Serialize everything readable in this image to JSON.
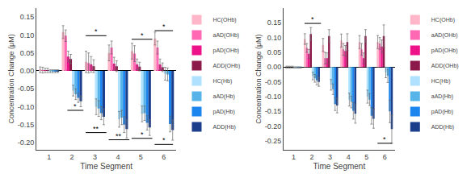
{
  "chart_data": [
    {
      "type": "bar",
      "xlabel": "Time Segment",
      "ylabel": "Concentration Change (μM)",
      "x": [
        1,
        2,
        3,
        4,
        5,
        6
      ],
      "xlim": [
        0.45,
        6.55
      ],
      "xticks": [
        1,
        2,
        3,
        4,
        5,
        6
      ],
      "ylim": [
        -0.22,
        0.175
      ],
      "yticks": [
        {
          "value": -0.2,
          "label": "-0.20"
        },
        -0.15,
        {
          "value": -0.1,
          "label": "-0.10"
        },
        -0.05,
        {
          "value": 0,
          "label": "0.00"
        },
        0.05,
        {
          "value": 0.1,
          "label": "0.10"
        },
        0.15
      ],
      "grid": false,
      "legend": "upper right",
      "series": [
        {
          "name": "HC(OHb)",
          "color": "#FFB6C8",
          "values": [
            0.003,
            0.108,
            0.025,
            0.05,
            0.055,
            0.09
          ],
          "errors": [
            0.008,
            0.018,
            0.03,
            0.022,
            0.022,
            0.018
          ]
        },
        {
          "name": "aAD(OHb)",
          "color": "#FF69B4",
          "values": [
            0.002,
            0.098,
            0.022,
            0.065,
            0.048,
            0.065
          ],
          "errors": [
            0.008,
            0.016,
            0.028,
            0.018,
            0.022,
            0.018
          ]
        },
        {
          "name": "pAD(OHb)",
          "color": "#EE1289",
          "values": [
            0.001,
            0.04,
            0.018,
            0.02,
            0.018,
            0.018
          ],
          "errors": [
            0.006,
            0.015,
            0.022,
            0.018,
            0.015,
            0.015
          ]
        },
        {
          "name": "ADD(OHb)",
          "color": "#8B1A4A",
          "values": [
            0.001,
            0.033,
            0.013,
            0.013,
            0.012,
            0.01
          ],
          "errors": [
            0.006,
            0.013,
            0.018,
            0.015,
            0.012,
            0.012
          ]
        },
        {
          "name": "HC(Hb)",
          "color": "#B0E2FF",
          "values": [
            -0.001,
            -0.055,
            -0.1,
            -0.135,
            -0.12,
            -0.008
          ],
          "errors": [
            0.004,
            0.015,
            0.022,
            0.022,
            0.022,
            0.018
          ]
        },
        {
          "name": "aAD(Hb)",
          "color": "#56B4E9",
          "values": [
            -0.001,
            -0.065,
            -0.105,
            -0.13,
            -0.118,
            -0.01
          ],
          "errors": [
            0.004,
            0.015,
            0.022,
            0.02,
            0.02,
            0.018
          ]
        },
        {
          "name": "pAD(Hb)",
          "color": "#1C86EE",
          "values": [
            -0.001,
            -0.075,
            -0.118,
            -0.15,
            -0.145,
            -0.148
          ],
          "errors": [
            0.004,
            0.013,
            0.018,
            0.022,
            0.02,
            0.022
          ]
        },
        {
          "name": "ADD(Hb)",
          "color": "#1C3F8C",
          "values": [
            -0.001,
            -0.085,
            -0.128,
            -0.162,
            -0.158,
            -0.165
          ],
          "errors": [
            0.004,
            0.015,
            0.022,
            0.025,
            0.022,
            0.028
          ]
        }
      ],
      "annotations": [
        {
          "text": "*",
          "x": 2.15,
          "y": -0.11,
          "x_from": 1.8,
          "x_to": 2.5
        },
        {
          "text": "**",
          "x": 3.05,
          "y": -0.172,
          "x_from": 2.6,
          "x_to": 3.5
        },
        {
          "text": "**",
          "x": 4.05,
          "y": -0.192,
          "x_from": 3.6,
          "x_to": 4.5
        },
        {
          "text": "*",
          "x": 5.05,
          "y": -0.188,
          "x_from": 4.6,
          "x_to": 5.5
        },
        {
          "text": "*",
          "x": 6.0,
          "y": -0.205,
          "x_from": 5.6,
          "x_to": 6.4
        },
        {
          "text": "*",
          "x": 3.05,
          "y": 0.098,
          "x_from": 2.6,
          "x_to": 3.5
        },
        {
          "text": "*",
          "x": 5.05,
          "y": 0.088,
          "x_from": 4.6,
          "x_to": 5.5
        },
        {
          "text": "*",
          "x": 6.0,
          "y": 0.112,
          "x_from": 5.6,
          "x_to": 6.4
        }
      ]
    },
    {
      "type": "bar",
      "xlabel": "Time Segment",
      "ylabel": "Concentration Change (μM)",
      "x": [
        1,
        2,
        3,
        4,
        5,
        6
      ],
      "xlim": [
        0.45,
        6.55
      ],
      "xticks": [
        1,
        2,
        3,
        4,
        5,
        6
      ],
      "ylim": [
        -0.28,
        0.2
      ],
      "yticks": [
        -0.25,
        {
          "value": -0.2,
          "label": "-0.20"
        },
        -0.15,
        {
          "value": -0.1,
          "label": "-0.10"
        },
        -0.05,
        {
          "value": 0,
          "label": "0.00"
        },
        0.05,
        {
          "value": 0.1,
          "label": "0.10"
        },
        0.15
      ],
      "grid": false,
      "legend": "upper right",
      "series": [
        {
          "name": "HC(OHb)",
          "color": "#FFB6C8",
          "values": [
            0.0,
            0.095,
            0.075,
            0.09,
            0.085,
            0.085
          ],
          "errors": [
            0.003,
            0.018,
            0.022,
            0.022,
            0.022,
            0.022
          ]
        },
        {
          "name": "aAD(OHb)",
          "color": "#FF69B4",
          "values": [
            0.0,
            0.065,
            0.03,
            0.06,
            0.06,
            0.08
          ],
          "errors": [
            0.003,
            0.015,
            0.02,
            0.02,
            0.02,
            0.02
          ]
        },
        {
          "name": "pAD(OHb)",
          "color": "#EE1289",
          "values": [
            0.0,
            0.045,
            0.03,
            0.055,
            0.03,
            0.07
          ],
          "errors": [
            0.003,
            0.015,
            0.018,
            0.018,
            0.018,
            0.022
          ]
        },
        {
          "name": "ADD(OHb)",
          "color": "#8B1A4A",
          "values": [
            0.0,
            0.112,
            0.105,
            0.085,
            0.105,
            0.105
          ],
          "errors": [
            0.003,
            0.022,
            0.022,
            0.028,
            0.022,
            0.038
          ]
        },
        {
          "name": "HC(Hb)",
          "color": "#B0E2FF",
          "values": [
            -0.001,
            -0.03,
            -0.06,
            -0.11,
            -0.1,
            -0.018
          ],
          "errors": [
            0.002,
            0.013,
            0.018,
            0.022,
            0.022,
            0.018
          ]
        },
        {
          "name": "aAD(Hb)",
          "color": "#56B4E9",
          "values": [
            -0.001,
            -0.038,
            -0.075,
            -0.118,
            -0.11,
            -0.03
          ],
          "errors": [
            0.002,
            0.013,
            0.018,
            0.02,
            0.02,
            0.022
          ]
        },
        {
          "name": "pAD(Hb)",
          "color": "#1C86EE",
          "values": [
            -0.001,
            -0.045,
            -0.125,
            -0.148,
            -0.165,
            -0.15
          ],
          "errors": [
            0.002,
            0.015,
            0.022,
            0.028,
            0.028,
            0.038
          ]
        },
        {
          "name": "ADD(Hb)",
          "color": "#1C3F8C",
          "values": [
            -0.001,
            -0.05,
            -0.13,
            -0.158,
            -0.175,
            -0.21
          ],
          "errors": [
            0.002,
            0.015,
            0.025,
            0.032,
            0.032,
            0.048
          ]
        }
      ],
      "annotations": [
        {
          "text": "*",
          "x": 2.05,
          "y": 0.148,
          "x_from": 1.6,
          "x_to": 2.5
        },
        {
          "text": "*",
          "x": 6.0,
          "y": -0.258,
          "x_from": 5.6,
          "x_to": 6.4
        }
      ]
    }
  ]
}
